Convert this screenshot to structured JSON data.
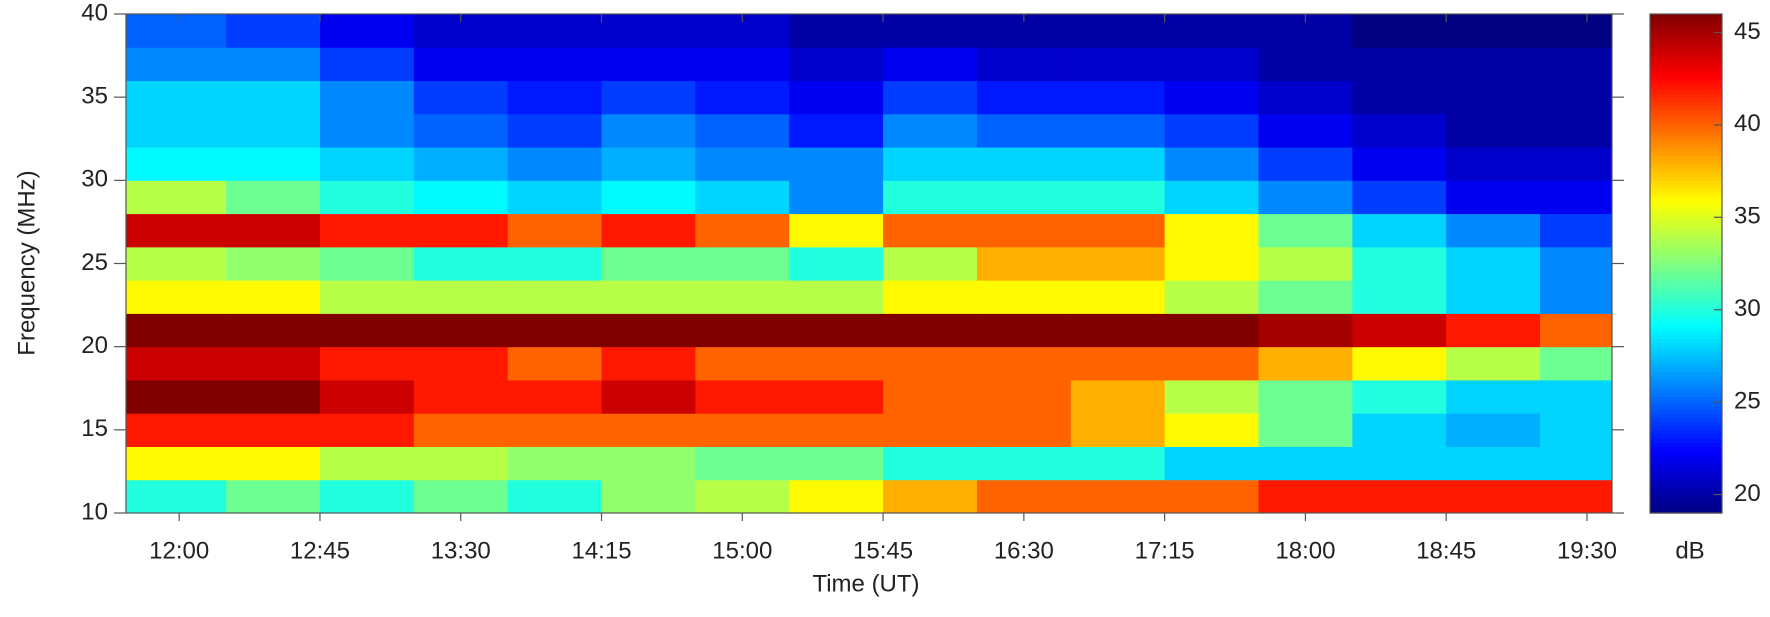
{
  "chart_data": {
    "type": "heatmap",
    "xlabel": "Time (UT)",
    "ylabel": "Frequency (MHz)",
    "x": [
      "11:43",
      "12:15",
      "12:45",
      "13:15",
      "13:45",
      "14:15",
      "14:45",
      "15:15",
      "15:45",
      "16:15",
      "16:45",
      "17:15",
      "17:45",
      "18:15",
      "18:45",
      "19:15"
    ],
    "y": [
      10,
      12,
      14,
      16,
      18,
      20,
      22,
      24,
      26,
      28,
      30,
      32,
      34,
      36,
      38
    ],
    "values": [
      [
        30,
        32,
        30,
        32,
        30,
        33,
        34,
        36,
        38,
        40,
        40,
        40,
        42,
        42,
        42,
        42
      ],
      [
        36,
        36,
        34,
        34,
        33,
        33,
        32,
        32,
        30,
        30,
        30,
        28,
        28,
        28,
        28,
        28
      ],
      [
        42,
        42,
        42,
        40,
        40,
        40,
        40,
        40,
        40,
        40,
        38,
        36,
        32,
        28,
        27,
        28
      ],
      [
        46,
        46,
        44,
        42,
        42,
        44,
        42,
        42,
        40,
        40,
        38,
        34,
        32,
        30,
        28,
        28
      ],
      [
        44,
        44,
        42,
        42,
        40,
        42,
        40,
        40,
        40,
        40,
        40,
        40,
        38,
        36,
        34,
        32
      ],
      [
        46,
        46,
        46,
        46,
        46,
        46,
        46,
        46,
        46,
        46,
        46,
        46,
        45,
        44,
        42,
        40
      ],
      [
        36,
        36,
        34,
        34,
        34,
        34,
        34,
        34,
        36,
        36,
        36,
        34,
        32,
        30,
        28,
        26
      ],
      [
        34,
        33,
        32,
        30,
        30,
        32,
        32,
        30,
        34,
        38,
        38,
        36,
        34,
        30,
        28,
        26
      ],
      [
        44,
        44,
        42,
        42,
        40,
        42,
        40,
        36,
        40,
        40,
        40,
        36,
        32,
        28,
        26,
        24
      ],
      [
        34,
        32,
        30,
        29,
        28,
        29,
        28,
        26,
        30,
        30,
        30,
        28,
        26,
        24,
        22,
        22
      ],
      [
        29,
        29,
        28,
        27,
        26,
        27,
        26,
        26,
        28,
        28,
        28,
        26,
        24,
        22,
        21,
        21
      ],
      [
        28,
        28,
        26,
        25,
        24,
        26,
        25,
        23,
        26,
        25,
        25,
        24,
        22,
        21,
        20,
        20
      ],
      [
        28,
        28,
        26,
        24,
        23,
        24,
        23,
        22,
        24,
        23,
        23,
        22,
        21,
        20,
        20,
        20
      ],
      [
        26,
        26,
        24,
        22,
        22,
        22,
        22,
        21,
        22,
        21,
        21,
        21,
        20,
        20,
        20,
        20
      ],
      [
        25,
        24,
        22,
        21,
        21,
        21,
        21,
        20,
        20,
        20,
        20,
        20,
        20,
        19,
        19,
        19
      ]
    ],
    "xlim": [
      "11:43",
      "19:38"
    ],
    "ylim": [
      10,
      40
    ],
    "xticks": [
      "12:00",
      "12:45",
      "13:30",
      "14:15",
      "15:00",
      "15:45",
      "16:30",
      "17:15",
      "18:00",
      "18:45",
      "19:30"
    ],
    "yticks": [
      10,
      15,
      20,
      25,
      30,
      35,
      40
    ],
    "colormap": "jet",
    "colorbar": {
      "label": "dB",
      "zlim": [
        19,
        46
      ],
      "zticks": [
        20,
        25,
        30,
        35,
        40,
        45
      ]
    }
  }
}
